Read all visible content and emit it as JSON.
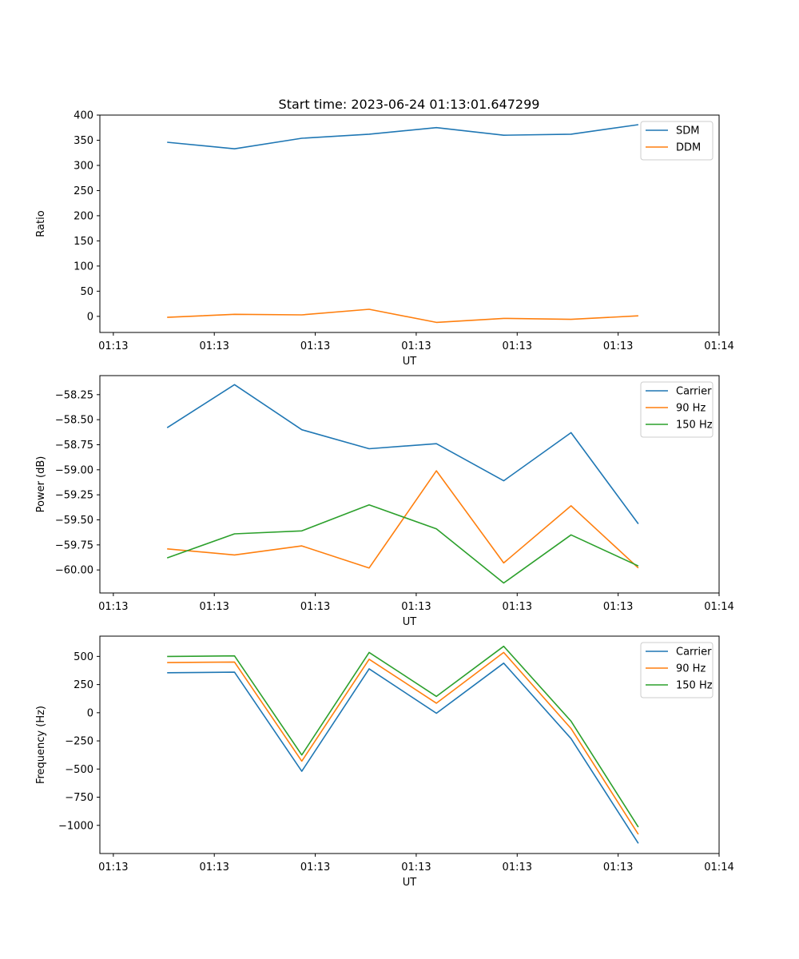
{
  "figure": {
    "title": "Start time: 2023-06-24 01:13:01.647299"
  },
  "colors": {
    "blue": "#1f77b4",
    "orange": "#ff7f0e",
    "green": "#2ca02c"
  },
  "chart_data": [
    {
      "type": "line",
      "title": "Start time: 2023-06-24 01:13:01.647299",
      "xlabel": "UT",
      "ylabel": "Ratio",
      "legend": "top-right",
      "grid": false,
      "x_ticks": [
        "01:13",
        "01:13",
        "01:13",
        "01:13",
        "01:13",
        "01:13",
        "01:14"
      ],
      "x_points": [
        1,
        2,
        3,
        4,
        5,
        6,
        7,
        8
      ],
      "xlim": [
        0,
        9.2
      ],
      "ylim": [
        -32,
        400
      ],
      "y_ticks": [
        0,
        50,
        100,
        150,
        200,
        250,
        300,
        350,
        400
      ],
      "series": [
        {
          "name": "SDM",
          "color": "#1f77b4",
          "values": [
            346,
            333,
            354,
            362,
            375,
            360,
            362,
            381
          ]
        },
        {
          "name": "DDM",
          "color": "#ff7f0e",
          "values": [
            -2,
            4,
            3,
            14,
            -12,
            -4,
            -6,
            1
          ]
        }
      ]
    },
    {
      "type": "line",
      "title": "",
      "xlabel": "UT",
      "ylabel": "Power (dB)",
      "legend": "top-right",
      "grid": false,
      "x_ticks": [
        "01:13",
        "01:13",
        "01:13",
        "01:13",
        "01:13",
        "01:13",
        "01:14"
      ],
      "x_points": [
        1,
        2,
        3,
        4,
        5,
        6,
        7,
        8
      ],
      "xlim": [
        0,
        9.2
      ],
      "ylim": [
        -60.23,
        -58.06
      ],
      "y_ticks": [
        -60.0,
        -59.75,
        -59.5,
        -59.25,
        -59.0,
        -58.75,
        -58.5,
        -58.25
      ],
      "y_tick_labels": [
        "−60.00",
        "−59.75",
        "−59.50",
        "−59.25",
        "−59.00",
        "−58.75",
        "−58.50",
        "−58.25"
      ],
      "series": [
        {
          "name": "Carrier",
          "color": "#1f77b4",
          "values": [
            -58.58,
            -58.15,
            -58.6,
            -58.79,
            -58.74,
            -59.11,
            -58.63,
            -59.54
          ]
        },
        {
          "name": "90 Hz",
          "color": "#ff7f0e",
          "values": [
            -59.79,
            -59.85,
            -59.76,
            -59.98,
            -59.01,
            -59.93,
            -59.36,
            -59.98
          ]
        },
        {
          "name": "150 Hz",
          "color": "#2ca02c",
          "values": [
            -59.88,
            -59.64,
            -59.61,
            -59.35,
            -59.59,
            -60.13,
            -59.65,
            -59.96
          ]
        }
      ]
    },
    {
      "type": "line",
      "title": "",
      "xlabel": "UT",
      "ylabel": "Frequency (Hz)",
      "legend": "top-right",
      "grid": false,
      "x_ticks": [
        "01:13",
        "01:13",
        "01:13",
        "01:13",
        "01:13",
        "01:13",
        "01:14"
      ],
      "x_points": [
        1,
        2,
        3,
        4,
        5,
        6,
        7,
        8
      ],
      "xlim": [
        0,
        9.2
      ],
      "ylim": [
        -1250,
        680
      ],
      "y_ticks": [
        -1000,
        -750,
        -500,
        -250,
        0,
        250,
        500
      ],
      "y_tick_labels": [
        "−1000",
        "−750",
        "−500",
        "−250",
        "0",
        "250",
        "500"
      ],
      "series": [
        {
          "name": "Carrier",
          "color": "#1f77b4",
          "values": [
            355,
            360,
            -520,
            390,
            -5,
            440,
            -230,
            -1160
          ]
        },
        {
          "name": "90 Hz",
          "color": "#ff7f0e",
          "values": [
            445,
            450,
            -430,
            475,
            85,
            535,
            -140,
            -1080
          ]
        },
        {
          "name": "150 Hz",
          "color": "#2ca02c",
          "values": [
            500,
            505,
            -375,
            535,
            145,
            590,
            -75,
            -1015
          ]
        }
      ]
    }
  ]
}
